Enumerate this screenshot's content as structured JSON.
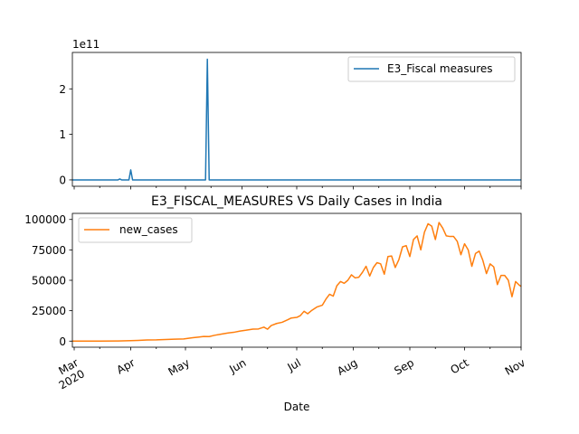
{
  "chart_data": [
    {
      "type": "line",
      "title": "",
      "xlabel": "",
      "ylabel": "",
      "y_scale_label": "1e11",
      "ylim": [
        -14000000000,
        280000000000
      ],
      "yticks": [
        0,
        100000000000,
        200000000000
      ],
      "ytick_labels": [
        "0",
        "1",
        "2"
      ],
      "x_range": [
        "2020-02-29",
        "2020-11-01"
      ],
      "legend": {
        "position": "upper right",
        "entries": [
          "E3_Fiscal measures"
        ]
      },
      "series": [
        {
          "name": "E3_Fiscal measures",
          "color": "#1f77b4",
          "points": [
            [
              "2020-02-29",
              0
            ],
            [
              "2020-03-25",
              0
            ],
            [
              "2020-03-26",
              2000000000
            ],
            [
              "2020-03-27",
              0
            ],
            [
              "2020-03-31",
              0
            ],
            [
              "2020-04-01",
              22000000000
            ],
            [
              "2020-04-02",
              0
            ],
            [
              "2020-05-12",
              0
            ],
            [
              "2020-05-13",
              265000000000
            ],
            [
              "2020-05-14",
              0
            ],
            [
              "2020-11-01",
              0
            ]
          ]
        }
      ]
    },
    {
      "type": "line",
      "title": "E3_FISCAL_MEASURES VS Daily Cases in India",
      "xlabel": "Date",
      "ylabel": "",
      "ylim": [
        -5000,
        105000
      ],
      "yticks": [
        0,
        25000,
        50000,
        75000,
        100000
      ],
      "ytick_labels": [
        "0",
        "25000",
        "50000",
        "75000",
        "100000"
      ],
      "x_range": [
        "2020-02-29",
        "2020-11-01"
      ],
      "xticks": [
        "2020-03-01",
        "2020-04-01",
        "2020-05-01",
        "2020-06-01",
        "2020-07-01",
        "2020-08-01",
        "2020-09-01",
        "2020-10-01",
        "2020-11-01"
      ],
      "xtick_labels": [
        "Mar\n2020",
        "Apr",
        "May",
        "Jun",
        "Jul",
        "Aug",
        "Sep",
        "Oct",
        "Nov"
      ],
      "legend": {
        "position": "upper left",
        "entries": [
          "new_cases"
        ]
      },
      "series": [
        {
          "name": "new_cases",
          "color": "#ff7f0e",
          "points": [
            [
              "2020-02-29",
              0
            ],
            [
              "2020-03-15",
              50
            ],
            [
              "2020-03-25",
              100
            ],
            [
              "2020-04-01",
              400
            ],
            [
              "2020-04-05",
              600
            ],
            [
              "2020-04-10",
              900
            ],
            [
              "2020-04-15",
              1000
            ],
            [
              "2020-04-20",
              1300
            ],
            [
              "2020-04-25",
              1600
            ],
            [
              "2020-04-30",
              1800
            ],
            [
              "2020-05-05",
              2800
            ],
            [
              "2020-05-08",
              3300
            ],
            [
              "2020-05-11",
              3800
            ],
            [
              "2020-05-14",
              3700
            ],
            [
              "2020-05-17",
              4800
            ],
            [
              "2020-05-20",
              5600
            ],
            [
              "2020-05-24",
              6600
            ],
            [
              "2020-05-28",
              7400
            ],
            [
              "2020-05-31",
              8300
            ],
            [
              "2020-06-03",
              8900
            ],
            [
              "2020-06-07",
              9900
            ],
            [
              "2020-06-10",
              10000
            ],
            [
              "2020-06-13",
              11500
            ],
            [
              "2020-06-15",
              9800
            ],
            [
              "2020-06-17",
              12800
            ],
            [
              "2020-06-20",
              14500
            ],
            [
              "2020-06-23",
              15500
            ],
            [
              "2020-06-26",
              17500
            ],
            [
              "2020-06-28",
              19000
            ],
            [
              "2020-07-01",
              19500
            ],
            [
              "2020-07-03",
              21000
            ],
            [
              "2020-07-05",
              24500
            ],
            [
              "2020-07-07",
              22500
            ],
            [
              "2020-07-09",
              25000
            ],
            [
              "2020-07-12",
              28000
            ],
            [
              "2020-07-15",
              29500
            ],
            [
              "2020-07-17",
              34500
            ],
            [
              "2020-07-19",
              38500
            ],
            [
              "2020-07-21",
              37000
            ],
            [
              "2020-07-23",
              45500
            ],
            [
              "2020-07-25",
              49000
            ],
            [
              "2020-07-27",
              47500
            ],
            [
              "2020-07-29",
              50000
            ],
            [
              "2020-07-31",
              54500
            ],
            [
              "2020-08-02",
              52000
            ],
            [
              "2020-08-04",
              52500
            ],
            [
              "2020-08-06",
              56500
            ],
            [
              "2020-08-08",
              61500
            ],
            [
              "2020-08-10",
              53500
            ],
            [
              "2020-08-12",
              60500
            ],
            [
              "2020-08-14",
              64500
            ],
            [
              "2020-08-16",
              63500
            ],
            [
              "2020-08-18",
              55000
            ],
            [
              "2020-08-20",
              69500
            ],
            [
              "2020-08-22",
              70000
            ],
            [
              "2020-08-24",
              60500
            ],
            [
              "2020-08-26",
              67000
            ],
            [
              "2020-08-28",
              77500
            ],
            [
              "2020-08-30",
              78500
            ],
            [
              "2020-09-01",
              69500
            ],
            [
              "2020-09-03",
              83500
            ],
            [
              "2020-09-05",
              86500
            ],
            [
              "2020-09-07",
              75000
            ],
            [
              "2020-09-09",
              89500
            ],
            [
              "2020-09-11",
              96500
            ],
            [
              "2020-09-13",
              94500
            ],
            [
              "2020-09-15",
              83500
            ],
            [
              "2020-09-17",
              97500
            ],
            [
              "2020-09-19",
              93000
            ],
            [
              "2020-09-21",
              86500
            ],
            [
              "2020-09-23",
              86000
            ],
            [
              "2020-09-25",
              86000
            ],
            [
              "2020-09-27",
              82000
            ],
            [
              "2020-09-29",
              71000
            ],
            [
              "2020-10-01",
              80000
            ],
            [
              "2020-10-03",
              75000
            ],
            [
              "2020-10-05",
              61500
            ],
            [
              "2020-10-07",
              72000
            ],
            [
              "2020-10-09",
              74000
            ],
            [
              "2020-10-11",
              66500
            ],
            [
              "2020-10-13",
              55500
            ],
            [
              "2020-10-15",
              63500
            ],
            [
              "2020-10-17",
              61000
            ],
            [
              "2020-10-19",
              46500
            ],
            [
              "2020-10-21",
              54000
            ],
            [
              "2020-10-23",
              54000
            ],
            [
              "2020-10-25",
              50000
            ],
            [
              "2020-10-27",
              36500
            ],
            [
              "2020-10-29",
              49000
            ],
            [
              "2020-10-31",
              46000
            ],
            [
              "2020-11-01",
              45000
            ]
          ]
        }
      ]
    }
  ]
}
